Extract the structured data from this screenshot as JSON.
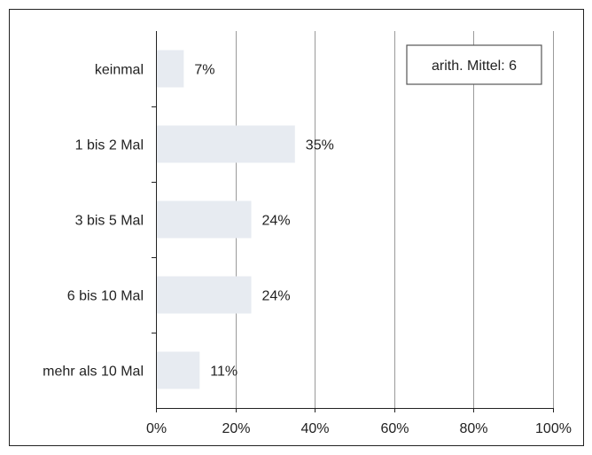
{
  "chart_data": {
    "type": "bar",
    "orientation": "horizontal",
    "categories": [
      "keinmal",
      "1 bis 2 Mal",
      "3 bis 5 Mal",
      "6 bis 10 Mal",
      "mehr als 10 Mal"
    ],
    "values": [
      7,
      35,
      24,
      24,
      11
    ],
    "value_labels": [
      "7%",
      "35%",
      "24%",
      "24%",
      "11%"
    ],
    "x_ticks": [
      "0%",
      "20%",
      "40%",
      "60%",
      "80%",
      "100%"
    ],
    "xlim": [
      0,
      100
    ],
    "grid": true,
    "bar_color": "#e7ebf1",
    "annotation": "arith. Mittel: 6",
    "annotation_position": "top-right"
  }
}
